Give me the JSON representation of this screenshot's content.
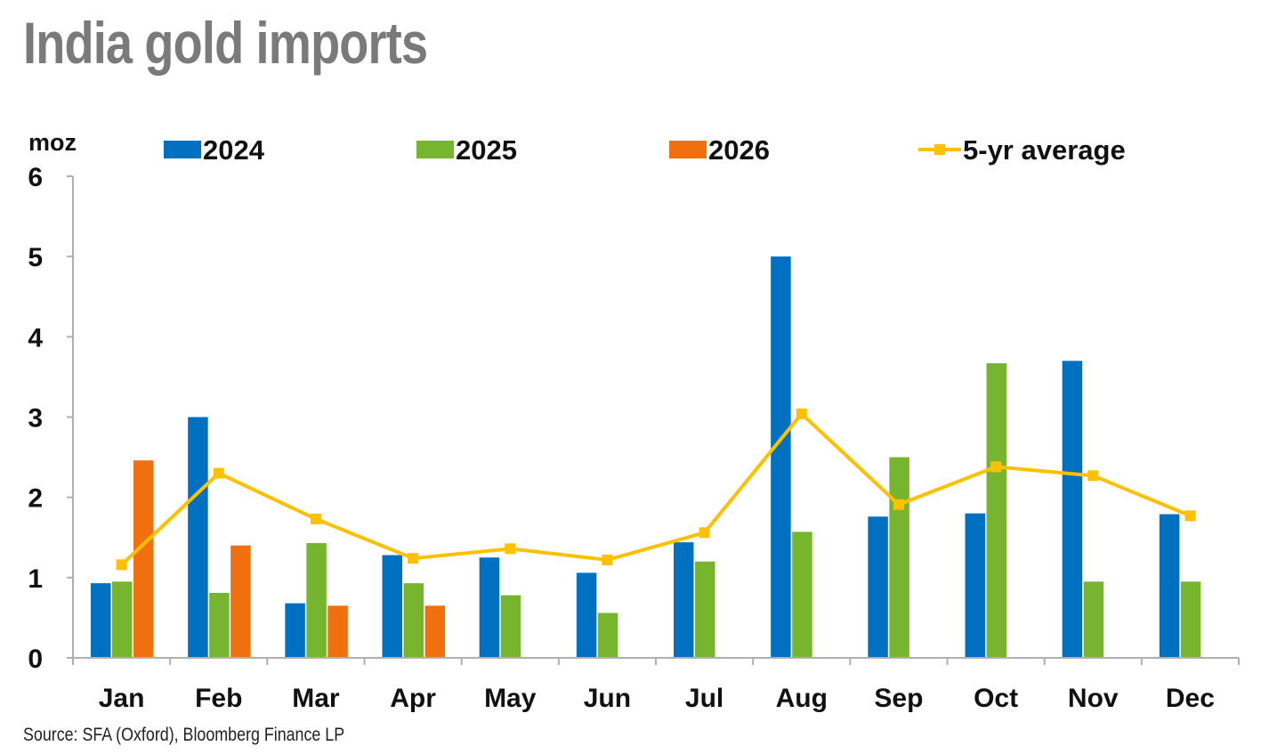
{
  "title": "India gold imports",
  "source": "Source: SFA (Oxford), Bloomberg Finance LP",
  "chart_data": {
    "type": "bar",
    "title": "India gold imports",
    "ylabel": "moz",
    "xlabel": "",
    "ylim": [
      0,
      6
    ],
    "yticks": [
      "0",
      "1",
      "2",
      "3",
      "4",
      "5",
      "6"
    ],
    "grid": false,
    "legend_position": "top",
    "categories": [
      "Jan",
      "Feb",
      "Mar",
      "Apr",
      "May",
      "Jun",
      "Jul",
      "Aug",
      "Sep",
      "Oct",
      "Nov",
      "Dec"
    ],
    "series": [
      {
        "name": "2024",
        "type": "bar",
        "color": "#0070C0",
        "values": [
          0.93,
          3.0,
          0.68,
          1.28,
          1.25,
          1.06,
          1.44,
          5.0,
          1.76,
          1.8,
          3.7,
          1.79
        ]
      },
      {
        "name": "2025",
        "type": "bar",
        "color": "#77B52F",
        "values": [
          0.95,
          0.81,
          1.43,
          0.93,
          0.78,
          0.56,
          1.2,
          1.57,
          2.5,
          3.67,
          0.95,
          0.95
        ]
      },
      {
        "name": "2026",
        "type": "bar",
        "color": "#F07010",
        "values": [
          2.46,
          1.4,
          0.65,
          0.65,
          null,
          null,
          null,
          null,
          null,
          null,
          null,
          null
        ]
      },
      {
        "name": "5-yr average",
        "type": "line",
        "color": "#FFC000",
        "values": [
          1.16,
          2.3,
          1.73,
          1.24,
          1.36,
          1.22,
          1.56,
          3.04,
          1.91,
          2.38,
          2.27,
          1.77
        ]
      }
    ]
  }
}
